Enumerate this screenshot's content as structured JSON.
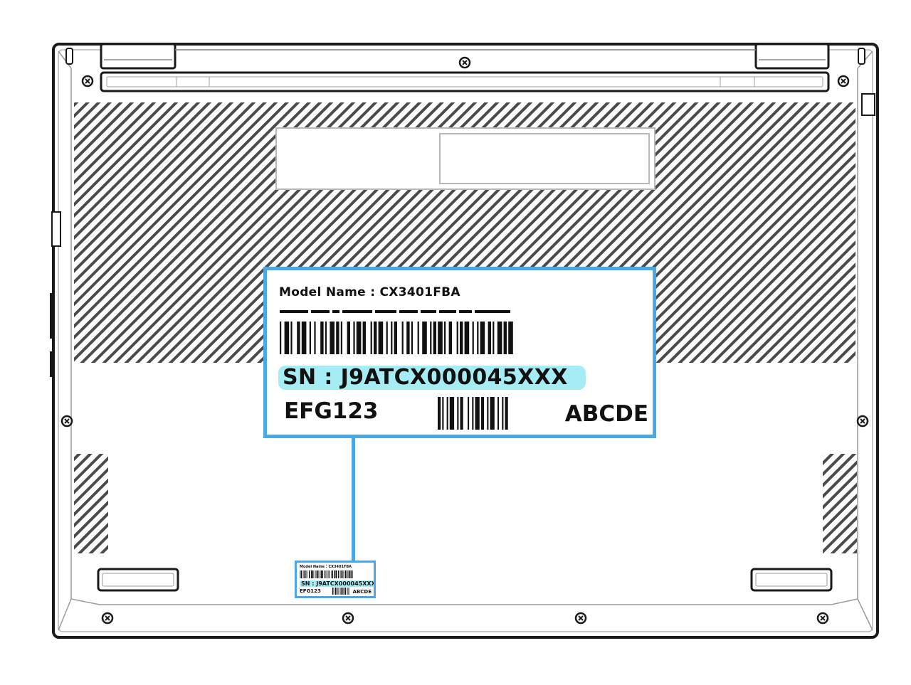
{
  "label": {
    "model_name": "Model Name : CX3401FBA",
    "serial_number": "SN : J9ATCX000045XXX",
    "code_left": "EFG123",
    "code_right": "ABCDE"
  },
  "mini_label": {
    "model_name": "Model Name : CX3401FBA",
    "serial_number": "SN : J9ATCX000045XXX",
    "code_left": "EFG123",
    "code_right": "ABCDE"
  },
  "colors": {
    "highlight_border": "#4aa8e8",
    "serial_highlight": "#a6ecf5",
    "outline": "#1a1a1a"
  }
}
